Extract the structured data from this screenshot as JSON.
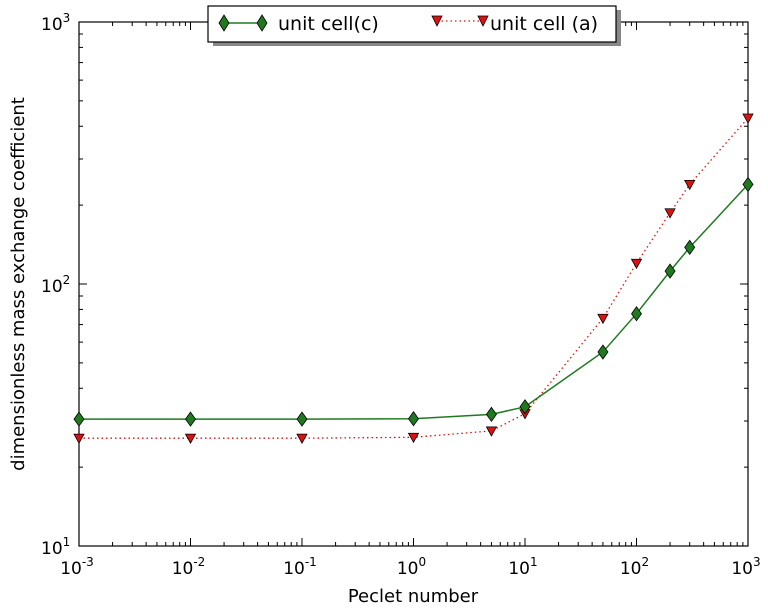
{
  "chart_data": {
    "type": "line",
    "title": "",
    "xlabel": "Peclet number",
    "ylabel": "dimensionless mass exchange coefficient",
    "xscale": "log",
    "yscale": "log",
    "xlim": [
      0.001,
      1000
    ],
    "ylim": [
      10,
      1000
    ],
    "grid": false,
    "legend_position": "top-center",
    "x_ticks": [
      {
        "value": 0.001,
        "base": "10",
        "exp": "-3"
      },
      {
        "value": 0.01,
        "base": "10",
        "exp": "-2"
      },
      {
        "value": 0.1,
        "base": "10",
        "exp": "-1"
      },
      {
        "value": 1,
        "base": "10",
        "exp": "0"
      },
      {
        "value": 10,
        "base": "10",
        "exp": "1"
      },
      {
        "value": 100,
        "base": "10",
        "exp": "2"
      },
      {
        "value": 1000,
        "base": "10",
        "exp": "3"
      }
    ],
    "y_ticks": [
      {
        "value": 10,
        "base": "10",
        "exp": "1"
      },
      {
        "value": 100,
        "base": "10",
        "exp": "2"
      },
      {
        "value": 1000,
        "base": "10",
        "exp": "3"
      }
    ],
    "series": [
      {
        "name": "unit cell(c)",
        "color": "#1f7a1f",
        "marker": "diamond",
        "line_style": "solid",
        "x": [
          0.001,
          0.01,
          0.1,
          1,
          5,
          10,
          50,
          100,
          200,
          300,
          1000
        ],
        "y": [
          30.5,
          30.5,
          30.5,
          30.6,
          31.8,
          34,
          55,
          77,
          112,
          138,
          240
        ]
      },
      {
        "name": "unit cell (a)",
        "color": "#dd1111",
        "marker": "triangle-down",
        "line_style": "dotted",
        "x": [
          0.001,
          0.01,
          0.1,
          1,
          5,
          10,
          50,
          100,
          200,
          300,
          1000
        ],
        "y": [
          25.8,
          25.8,
          25.8,
          26,
          27.5,
          32,
          74,
          120,
          187,
          240,
          430
        ]
      }
    ]
  }
}
